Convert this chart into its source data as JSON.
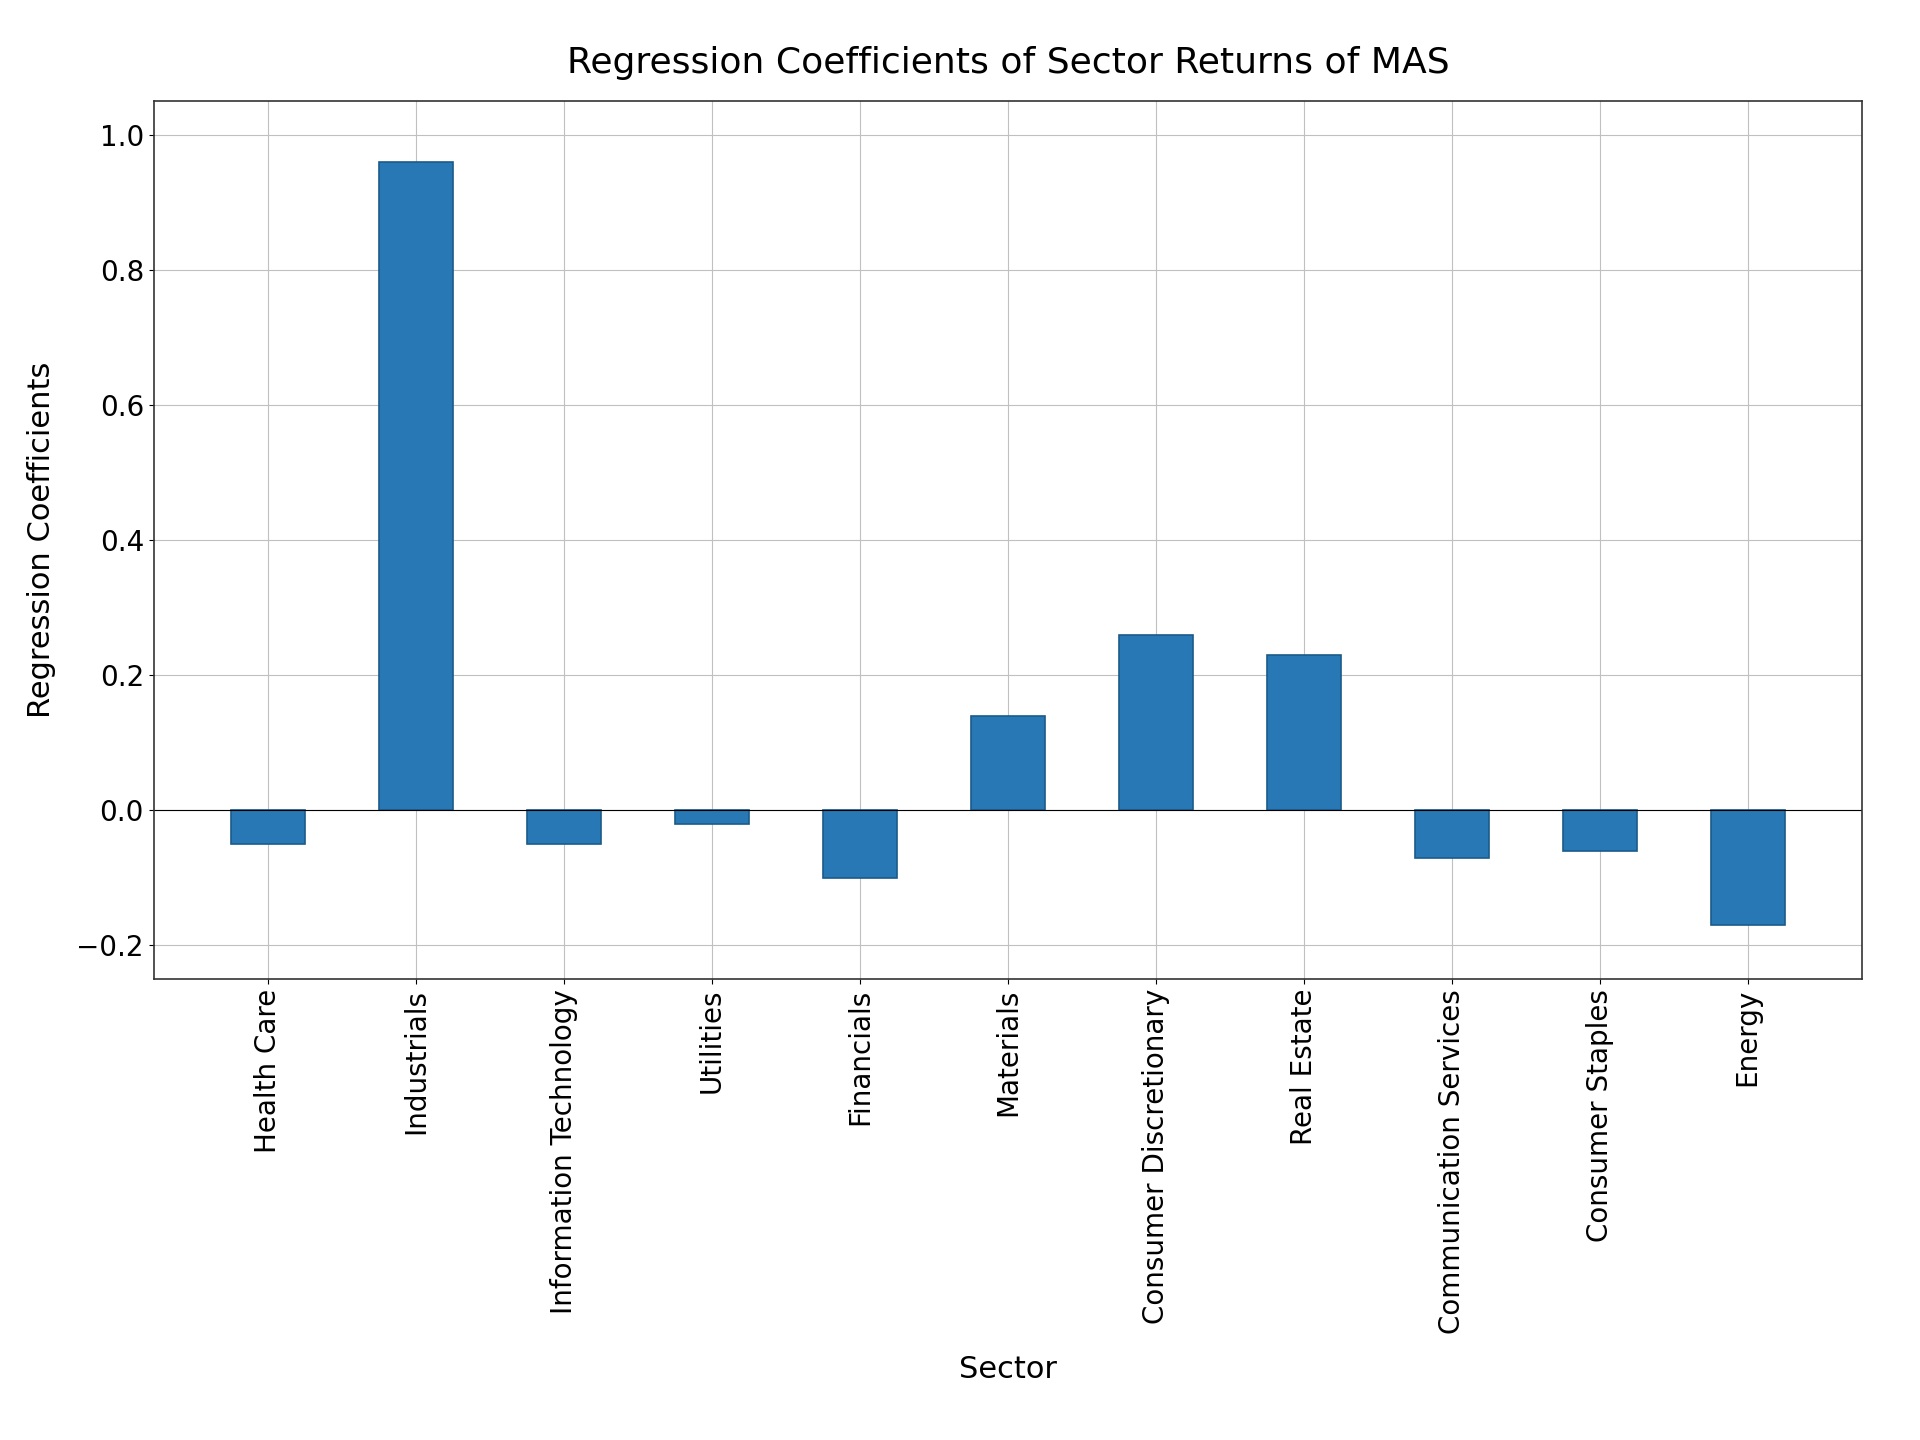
{
  "categories": [
    "Health Care",
    "Industrials",
    "Information Technology",
    "Utilities",
    "Financials",
    "Materials",
    "Consumer Discretionary",
    "Real Estate",
    "Communication Services",
    "Consumer Staples",
    "Energy"
  ],
  "values": [
    -0.05,
    0.96,
    -0.05,
    -0.02,
    -0.1,
    0.14,
    0.26,
    0.23,
    -0.07,
    -0.06,
    -0.17
  ],
  "bar_color": "#2878b5",
  "bar_edgecolor": "#1a5a8a",
  "title": "Regression Coefficients of Sector Returns of MAS",
  "xlabel": "Sector",
  "ylabel": "Regression Coefficients",
  "ylim": [
    -0.25,
    1.05
  ],
  "yticks": [
    -0.2,
    0.0,
    0.2,
    0.4,
    0.6,
    0.8,
    1.0
  ],
  "title_fontsize": 26,
  "label_fontsize": 22,
  "tick_fontsize": 20,
  "background_color": "#ffffff",
  "grid_color": "#c0c0c0",
  "bar_width": 0.5
}
